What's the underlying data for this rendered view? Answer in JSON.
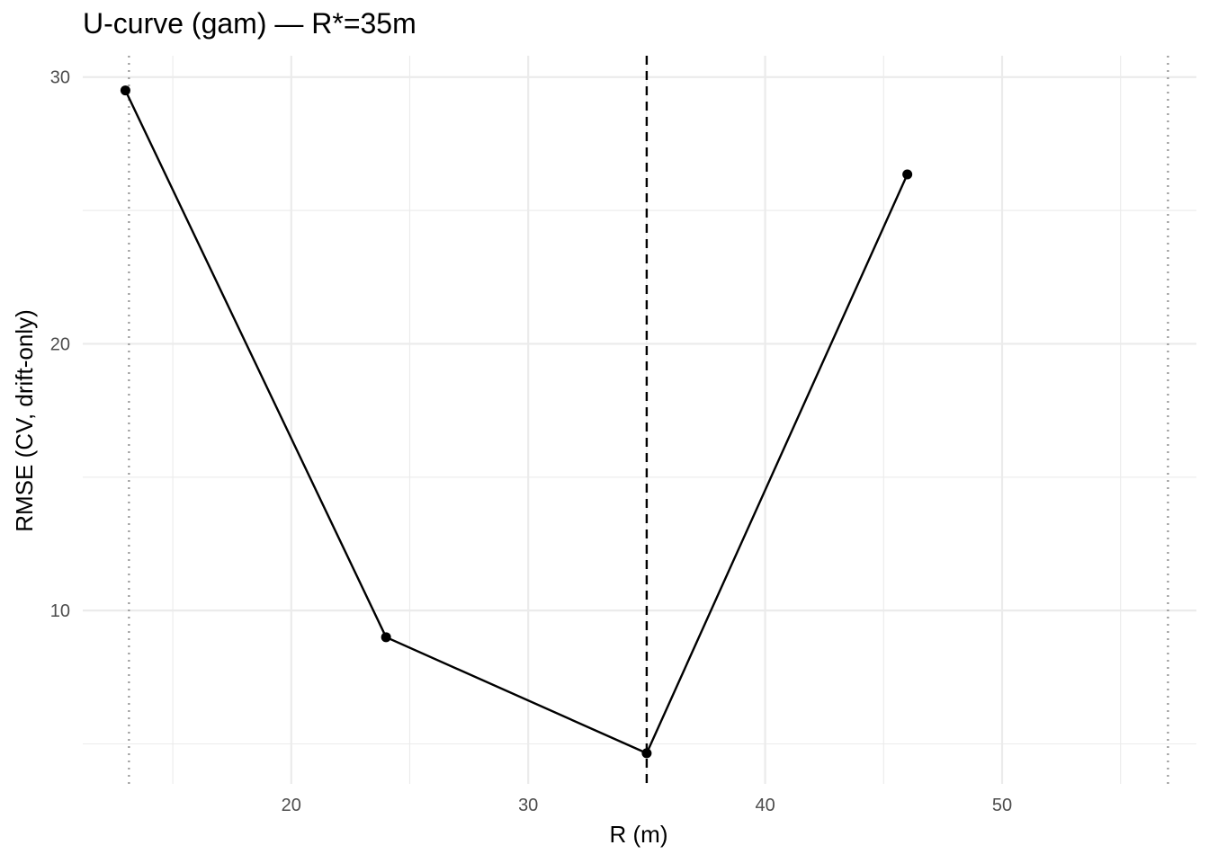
{
  "chart_data": {
    "type": "line",
    "title": "U-curve (gam) — R*=35m",
    "xlabel": "R (m)",
    "ylabel": "RMSE (CV, drift-only)",
    "x": [
      13,
      24,
      35,
      46
    ],
    "series": [
      {
        "values": [
          29.5,
          9.0,
          4.65,
          26.35
        ]
      }
    ],
    "xlim": [
      11.2,
      58.2
    ],
    "ylim": [
      3.5,
      30.8
    ],
    "x_ticks": [
      20,
      30,
      40,
      50
    ],
    "y_ticks": [
      10,
      20,
      30
    ],
    "x_tick_labels": [
      "20",
      "30",
      "40",
      "50"
    ],
    "y_tick_labels": [
      "10",
      "20",
      "30"
    ],
    "reference_lines": [
      {
        "x": 35,
        "style": "dashed",
        "color": "#000000"
      },
      {
        "x": 13.15,
        "style": "dotted",
        "color": "#999999"
      },
      {
        "x": 57,
        "style": "dotted",
        "color": "#999999"
      }
    ],
    "grid": true,
    "legend": "none",
    "colors": {
      "line": "#000000",
      "grid": "#ebebeb",
      "tick_text": "#4d4d4d"
    }
  }
}
